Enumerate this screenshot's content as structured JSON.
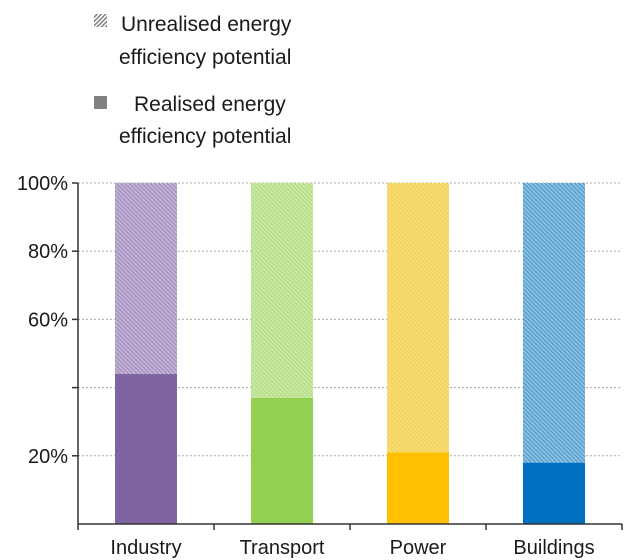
{
  "chart_data": {
    "type": "bar",
    "stacked": true,
    "categories": [
      "Industry",
      "Transport",
      "Power",
      "Buildings"
    ],
    "series": [
      {
        "name": "Realised energy efficiency potential",
        "pattern": "solid",
        "values": [
          44,
          37,
          21,
          18
        ]
      },
      {
        "name": "Unrealised energy efficiency potential",
        "pattern": "hatched",
        "values": [
          56,
          63,
          79,
          82
        ]
      }
    ],
    "colors": {
      "Industry": {
        "solid": "#8064a2",
        "light": "#c3b3d6"
      },
      "Transport": {
        "solid": "#92d050",
        "light": "#cde8a8"
      },
      "Power": {
        "solid": "#ffc000",
        "light": "#f4df84"
      },
      "Buildings": {
        "solid": "#0070c0",
        "light": "#92c2e0"
      }
    },
    "legend": [
      {
        "label_lines": [
          "Unrealised energy",
          "efficiency potential"
        ],
        "marker": "hatched-icon"
      },
      {
        "label_lines": [
          "Realised energy",
          "efficiency potential"
        ],
        "marker": "solid-square-icon"
      }
    ],
    "yticks": [
      {
        "value": 20,
        "label": "20%"
      },
      {
        "value": 40,
        "label": ""
      },
      {
        "value": 60,
        "label": "60%"
      },
      {
        "value": 80,
        "label": "80%"
      },
      {
        "value": 100,
        "label": "100%"
      }
    ],
    "ylim": [
      0,
      100
    ],
    "grid": true,
    "legend_position": "top-left",
    "title": "",
    "xlabel": "",
    "ylabel": ""
  }
}
